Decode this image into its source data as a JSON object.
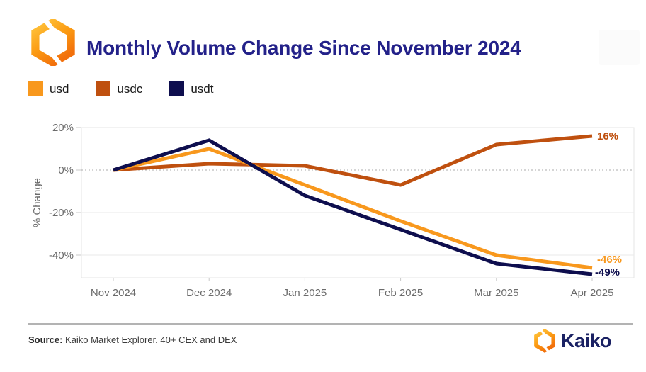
{
  "header": {
    "title": "Monthly Volume Change Since November 2024"
  },
  "legend": {
    "items": [
      {
        "label": "usd",
        "color": "#F8981D"
      },
      {
        "label": "usdc",
        "color": "#BF500F"
      },
      {
        "label": "usdt",
        "color": "#0E0E4E"
      }
    ]
  },
  "chart_style": {
    "grid": "#EAEAEA",
    "border": "#E4E4E4",
    "zero_line": "#ABABAB",
    "tick": "#C9C9C9",
    "axis_text": "#6B6B6B"
  },
  "chart_data": {
    "type": "line",
    "title": "Monthly Volume Change Since November 2024",
    "xlabel": "",
    "ylabel": "% Change",
    "categories": [
      "Nov 2024",
      "Dec 2024",
      "Jan 2025",
      "Feb 2025",
      "Mar 2025",
      "Apr 2025"
    ],
    "yticks": [
      "20%",
      "0%",
      "-20%",
      "-40%"
    ],
    "ytick_values": [
      20,
      0,
      -20,
      -40
    ],
    "ylim": [
      -51,
      20
    ],
    "grid": "horizontal gridlines, dashed line at zero",
    "legend_position": "top-left",
    "series": [
      {
        "name": "usd",
        "color": "#F8981D",
        "values": [
          0,
          10,
          -7,
          -24,
          -40,
          -46
        ],
        "end_label": "-46%"
      },
      {
        "name": "usdc",
        "color": "#BF500F",
        "values": [
          0,
          3,
          2,
          -7,
          12,
          16
        ],
        "end_label": "16%"
      },
      {
        "name": "usdt",
        "color": "#0E0E4E",
        "values": [
          0,
          14,
          -12,
          -28,
          -44,
          -49
        ],
        "end_label": "-49%"
      }
    ]
  },
  "footer": {
    "source_label": "Source:",
    "source_text": " Kaiko Market Explorer. 40+ CEX and DEX",
    "brand": "Kaiko"
  }
}
